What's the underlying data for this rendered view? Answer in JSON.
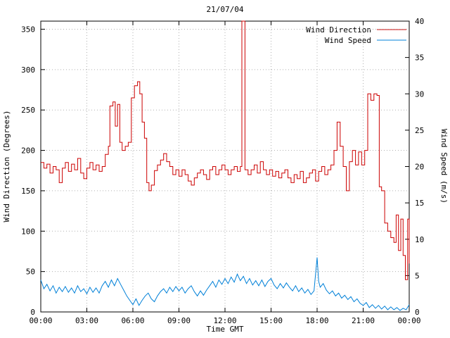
{
  "chart_data": {
    "type": "line",
    "title": "21/07/04",
    "xlabel": "Time GMT",
    "ylabel_left": "Wind Direction (Degrees)",
    "ylabel_right": "Wind Speed (m/s)",
    "xlim": [
      0,
      24
    ],
    "ylim_left": [
      0,
      360
    ],
    "ylim_right": [
      0,
      40
    ],
    "grid": true,
    "legend_position": "top-right",
    "background": "#ffffff",
    "grid_color": "#b0b0b0",
    "x_ticks": [
      {
        "h": 0,
        "label": "00:00"
      },
      {
        "h": 3,
        "label": "03:00"
      },
      {
        "h": 6,
        "label": "06:00"
      },
      {
        "h": 9,
        "label": "09:00"
      },
      {
        "h": 12,
        "label": "12:00"
      },
      {
        "h": 15,
        "label": "15:00"
      },
      {
        "h": 18,
        "label": "18:00"
      },
      {
        "h": 21,
        "label": "21:00"
      },
      {
        "h": 24,
        "label": "00:00"
      }
    ],
    "y_ticks_left": [
      0,
      50,
      100,
      150,
      200,
      250,
      300,
      350
    ],
    "y_ticks_right": [
      0,
      5,
      10,
      15,
      20,
      25,
      30,
      35,
      40
    ],
    "series": [
      {
        "name": "Wind Direction",
        "axis": "left",
        "color": "#cc0000",
        "style": "steps",
        "points": [
          [
            0,
            185
          ],
          [
            0.2,
            178
          ],
          [
            0.4,
            183
          ],
          [
            0.6,
            172
          ],
          [
            0.8,
            180
          ],
          [
            1,
            176
          ],
          [
            1.2,
            160
          ],
          [
            1.4,
            178
          ],
          [
            1.6,
            185
          ],
          [
            1.8,
            174
          ],
          [
            2,
            183
          ],
          [
            2.2,
            176
          ],
          [
            2.4,
            190
          ],
          [
            2.6,
            172
          ],
          [
            2.8,
            165
          ],
          [
            3,
            178
          ],
          [
            3.2,
            185
          ],
          [
            3.4,
            176
          ],
          [
            3.6,
            182
          ],
          [
            3.8,
            174
          ],
          [
            4,
            180
          ],
          [
            4.2,
            195
          ],
          [
            4.4,
            205
          ],
          [
            4.5,
            255
          ],
          [
            4.7,
            260
          ],
          [
            4.85,
            230
          ],
          [
            5,
            257
          ],
          [
            5.15,
            210
          ],
          [
            5.3,
            200
          ],
          [
            5.5,
            205
          ],
          [
            5.7,
            210
          ],
          [
            5.9,
            265
          ],
          [
            6.1,
            280
          ],
          [
            6.3,
            285
          ],
          [
            6.45,
            270
          ],
          [
            6.6,
            235
          ],
          [
            6.75,
            215
          ],
          [
            6.9,
            160
          ],
          [
            7.05,
            150
          ],
          [
            7.2,
            157
          ],
          [
            7.4,
            175
          ],
          [
            7.6,
            182
          ],
          [
            7.8,
            188
          ],
          [
            8,
            196
          ],
          [
            8.2,
            186
          ],
          [
            8.4,
            180
          ],
          [
            8.6,
            170
          ],
          [
            8.8,
            176
          ],
          [
            9,
            168
          ],
          [
            9.2,
            176
          ],
          [
            9.4,
            170
          ],
          [
            9.6,
            162
          ],
          [
            9.8,
            157
          ],
          [
            10,
            166
          ],
          [
            10.2,
            172
          ],
          [
            10.4,
            176
          ],
          [
            10.6,
            170
          ],
          [
            10.8,
            164
          ],
          [
            11,
            176
          ],
          [
            11.2,
            180
          ],
          [
            11.4,
            170
          ],
          [
            11.6,
            176
          ],
          [
            11.8,
            182
          ],
          [
            12,
            176
          ],
          [
            12.2,
            170
          ],
          [
            12.4,
            176
          ],
          [
            12.6,
            180
          ],
          [
            12.8,
            174
          ],
          [
            13,
            180
          ],
          [
            13.1,
            360
          ],
          [
            13.25,
            360
          ],
          [
            13.3,
            176
          ],
          [
            13.5,
            170
          ],
          [
            13.7,
            176
          ],
          [
            13.9,
            182
          ],
          [
            14.1,
            172
          ],
          [
            14.3,
            186
          ],
          [
            14.5,
            176
          ],
          [
            14.7,
            170
          ],
          [
            14.9,
            176
          ],
          [
            15.1,
            168
          ],
          [
            15.3,
            174
          ],
          [
            15.5,
            166
          ],
          [
            15.7,
            172
          ],
          [
            15.9,
            176
          ],
          [
            16.1,
            166
          ],
          [
            16.3,
            160
          ],
          [
            16.5,
            170
          ],
          [
            16.7,
            165
          ],
          [
            16.9,
            174
          ],
          [
            17.1,
            160
          ],
          [
            17.3,
            166
          ],
          [
            17.5,
            172
          ],
          [
            17.7,
            176
          ],
          [
            17.9,
            162
          ],
          [
            18.1,
            174
          ],
          [
            18.3,
            180
          ],
          [
            18.5,
            170
          ],
          [
            18.7,
            176
          ],
          [
            18.9,
            182
          ],
          [
            19.1,
            200
          ],
          [
            19.3,
            235
          ],
          [
            19.5,
            205
          ],
          [
            19.7,
            180
          ],
          [
            19.9,
            150
          ],
          [
            20.1,
            186
          ],
          [
            20.3,
            200
          ],
          [
            20.5,
            182
          ],
          [
            20.7,
            198
          ],
          [
            20.9,
            182
          ],
          [
            21.1,
            200
          ],
          [
            21.3,
            270
          ],
          [
            21.5,
            262
          ],
          [
            21.7,
            270
          ],
          [
            21.9,
            268
          ],
          [
            22.05,
            155
          ],
          [
            22.2,
            150
          ],
          [
            22.4,
            110
          ],
          [
            22.6,
            100
          ],
          [
            22.8,
            92
          ],
          [
            23,
            86
          ],
          [
            23.15,
            120
          ],
          [
            23.3,
            76
          ],
          [
            23.45,
            115
          ],
          [
            23.6,
            70
          ],
          [
            23.75,
            40
          ],
          [
            23.9,
            115
          ],
          [
            24,
            60
          ]
        ]
      },
      {
        "name": "Wind Speed",
        "axis": "right",
        "color": "#0080d8",
        "style": "line",
        "points": [
          [
            0,
            4.4
          ],
          [
            0.2,
            3.2
          ],
          [
            0.4,
            3.8
          ],
          [
            0.6,
            2.9
          ],
          [
            0.8,
            3.6
          ],
          [
            1,
            2.6
          ],
          [
            1.2,
            3.4
          ],
          [
            1.4,
            2.8
          ],
          [
            1.6,
            3.5
          ],
          [
            1.8,
            2.7
          ],
          [
            2,
            3.3
          ],
          [
            2.2,
            2.6
          ],
          [
            2.4,
            3.6
          ],
          [
            2.6,
            2.8
          ],
          [
            2.8,
            3.2
          ],
          [
            3,
            2.5
          ],
          [
            3.2,
            3.4
          ],
          [
            3.4,
            2.7
          ],
          [
            3.6,
            3.3
          ],
          [
            3.8,
            2.6
          ],
          [
            4,
            3.6
          ],
          [
            4.2,
            4.2
          ],
          [
            4.4,
            3.4
          ],
          [
            4.6,
            4.4
          ],
          [
            4.8,
            3.6
          ],
          [
            5,
            4.6
          ],
          [
            5.2,
            3.8
          ],
          [
            5.4,
            3.0
          ],
          [
            5.6,
            2.2
          ],
          [
            5.8,
            1.6
          ],
          [
            6,
            1.0
          ],
          [
            6.2,
            1.8
          ],
          [
            6.4,
            0.9
          ],
          [
            6.6,
            1.6
          ],
          [
            6.8,
            2.2
          ],
          [
            7,
            2.6
          ],
          [
            7.2,
            1.8
          ],
          [
            7.4,
            1.4
          ],
          [
            7.6,
            2.2
          ],
          [
            7.8,
            2.8
          ],
          [
            8,
            3.2
          ],
          [
            8.2,
            2.6
          ],
          [
            8.4,
            3.4
          ],
          [
            8.6,
            2.8
          ],
          [
            8.8,
            3.5
          ],
          [
            9,
            2.9
          ],
          [
            9.2,
            3.4
          ],
          [
            9.4,
            2.6
          ],
          [
            9.6,
            3.2
          ],
          [
            9.8,
            3.6
          ],
          [
            10,
            2.8
          ],
          [
            10.2,
            2.2
          ],
          [
            10.4,
            2.9
          ],
          [
            10.6,
            2.3
          ],
          [
            10.8,
            3.0
          ],
          [
            11,
            3.6
          ],
          [
            11.2,
            4.2
          ],
          [
            11.4,
            3.4
          ],
          [
            11.6,
            4.4
          ],
          [
            11.8,
            3.8
          ],
          [
            12,
            4.6
          ],
          [
            12.2,
            3.9
          ],
          [
            12.4,
            4.8
          ],
          [
            12.6,
            4.1
          ],
          [
            12.8,
            5.2
          ],
          [
            13,
            4.3
          ],
          [
            13.2,
            4.9
          ],
          [
            13.4,
            3.9
          ],
          [
            13.6,
            4.6
          ],
          [
            13.8,
            3.7
          ],
          [
            14,
            4.3
          ],
          [
            14.2,
            3.6
          ],
          [
            14.4,
            4.4
          ],
          [
            14.6,
            3.5
          ],
          [
            14.8,
            4.2
          ],
          [
            15,
            4.6
          ],
          [
            15.2,
            3.7
          ],
          [
            15.4,
            3.2
          ],
          [
            15.6,
            3.9
          ],
          [
            15.8,
            3.3
          ],
          [
            16,
            4.0
          ],
          [
            16.2,
            3.4
          ],
          [
            16.4,
            2.9
          ],
          [
            16.6,
            3.6
          ],
          [
            16.8,
            2.8
          ],
          [
            17,
            3.3
          ],
          [
            17.2,
            2.6
          ],
          [
            17.4,
            3.1
          ],
          [
            17.6,
            2.4
          ],
          [
            17.8,
            2.9
          ],
          [
            18,
            7.5
          ],
          [
            18.1,
            4.2
          ],
          [
            18.2,
            3.4
          ],
          [
            18.4,
            3.9
          ],
          [
            18.6,
            3.0
          ],
          [
            18.8,
            2.5
          ],
          [
            19,
            2.9
          ],
          [
            19.2,
            2.2
          ],
          [
            19.4,
            2.6
          ],
          [
            19.6,
            1.9
          ],
          [
            19.8,
            2.3
          ],
          [
            20,
            1.7
          ],
          [
            20.2,
            2.1
          ],
          [
            20.4,
            1.4
          ],
          [
            20.6,
            1.8
          ],
          [
            20.8,
            1.2
          ],
          [
            21,
            0.9
          ],
          [
            21.2,
            1.3
          ],
          [
            21.4,
            0.6
          ],
          [
            21.6,
            1.0
          ],
          [
            21.8,
            0.5
          ],
          [
            22,
            0.9
          ],
          [
            22.2,
            0.4
          ],
          [
            22.4,
            0.8
          ],
          [
            22.6,
            0.3
          ],
          [
            22.8,
            0.7
          ],
          [
            23,
            0.3
          ],
          [
            23.2,
            0.6
          ],
          [
            23.4,
            0.2
          ],
          [
            23.6,
            0.5
          ],
          [
            23.8,
            0.3
          ],
          [
            24,
            1.0
          ]
        ]
      }
    ]
  }
}
